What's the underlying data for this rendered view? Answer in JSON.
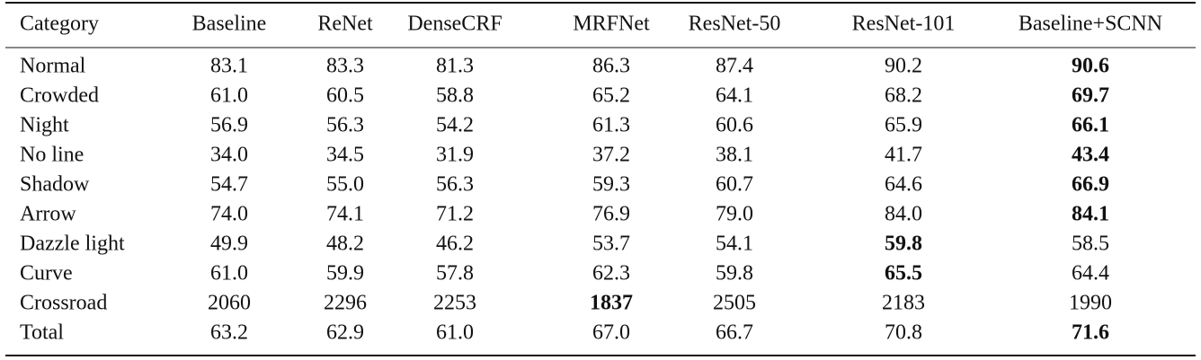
{
  "table": {
    "header": [
      "Category",
      "Baseline",
      "ReNet",
      "DenseCRF",
      "MRFNet",
      "ResNet-50",
      "ResNet-101",
      "Baseline+SCNN"
    ],
    "rows": [
      [
        "Normal",
        "83.1",
        "83.3",
        "81.3",
        "86.3",
        "87.4",
        "90.2",
        "90.6"
      ],
      [
        "Crowded",
        "61.0",
        "60.5",
        "58.8",
        "65.2",
        "64.1",
        "68.2",
        "69.7"
      ],
      [
        "Night",
        "56.9",
        "56.3",
        "54.2",
        "61.3",
        "60.6",
        "65.9",
        "66.1"
      ],
      [
        "No line",
        "34.0",
        "34.5",
        "31.9",
        "37.2",
        "38.1",
        "41.7",
        "43.4"
      ],
      [
        "Shadow",
        "54.7",
        "55.0",
        "56.3",
        "59.3",
        "60.7",
        "64.6",
        "66.9"
      ],
      [
        "Arrow",
        "74.0",
        "74.1",
        "71.2",
        "76.9",
        "79.0",
        "84.0",
        "84.1"
      ],
      [
        "Dazzle light",
        "49.9",
        "48.2",
        "46.2",
        "53.7",
        "54.1",
        "59.8",
        "58.5"
      ],
      [
        "Curve",
        "61.0",
        "59.9",
        "57.8",
        "62.3",
        "59.8",
        "65.5",
        "64.4"
      ],
      [
        "Crossroad",
        "2060",
        "2296",
        "2253",
        "1837",
        "2505",
        "2183",
        "1990"
      ],
      [
        "Total",
        "63.2",
        "62.9",
        "61.0",
        "67.0",
        "66.7",
        "70.8",
        "71.6"
      ]
    ],
    "bold": [
      [
        0,
        7
      ],
      [
        1,
        7
      ],
      [
        2,
        7
      ],
      [
        3,
        7
      ],
      [
        4,
        7
      ],
      [
        5,
        7
      ],
      [
        6,
        6
      ],
      [
        7,
        6
      ],
      [
        8,
        4
      ],
      [
        9,
        7
      ]
    ]
  }
}
